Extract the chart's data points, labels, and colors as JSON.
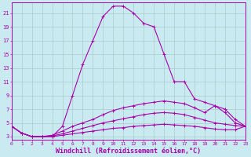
{
  "background_color": "#c8eaf0",
  "grid_color": "#b0d8e0",
  "line_color": "#aa00aa",
  "xlabel": "Windchill (Refroidissement éolien,°C)",
  "xlabel_fontsize": 6,
  "xticks": [
    0,
    1,
    2,
    3,
    4,
    5,
    6,
    7,
    8,
    9,
    10,
    11,
    12,
    13,
    14,
    15,
    16,
    17,
    18,
    19,
    20,
    21,
    22,
    23
  ],
  "yticks": [
    3,
    5,
    7,
    9,
    11,
    13,
    15,
    17,
    19,
    21
  ],
  "xlim": [
    0,
    23
  ],
  "ylim": [
    2.5,
    22.5
  ],
  "curves": [
    {
      "x": [
        0,
        1,
        2,
        3,
        4,
        5,
        6,
        7,
        8,
        9,
        10,
        11,
        12,
        13,
        14,
        15,
        16,
        17,
        18,
        19,
        20,
        21,
        22,
        23
      ],
      "y": [
        4.5,
        3.5,
        3.0,
        3.0,
        3.0,
        4.5,
        9.0,
        13.5,
        17.0,
        20.5,
        22.0,
        22.0,
        21.0,
        19.5,
        19.0,
        15.0,
        11.0,
        11.0,
        8.5,
        8.0,
        7.5,
        6.5,
        5.0,
        4.5
      ]
    },
    {
      "x": [
        0,
        1,
        2,
        3,
        4,
        5,
        6,
        7,
        8,
        9,
        10,
        11,
        12,
        13,
        14,
        15,
        16,
        17,
        18,
        19,
        20,
        21,
        22,
        23
      ],
      "y": [
        4.5,
        3.5,
        3.0,
        3.0,
        3.2,
        3.8,
        4.5,
        5.0,
        5.5,
        6.2,
        6.8,
        7.2,
        7.5,
        7.8,
        8.0,
        8.2,
        8.0,
        7.8,
        7.2,
        6.5,
        7.5,
        7.0,
        5.5,
        4.5
      ]
    },
    {
      "x": [
        0,
        1,
        2,
        3,
        4,
        5,
        6,
        7,
        8,
        9,
        10,
        11,
        12,
        13,
        14,
        15,
        16,
        17,
        18,
        19,
        20,
        21,
        22,
        23
      ],
      "y": [
        4.5,
        3.5,
        3.0,
        3.0,
        3.1,
        3.4,
        3.8,
        4.2,
        4.6,
        5.0,
        5.3,
        5.6,
        5.9,
        6.2,
        6.4,
        6.5,
        6.4,
        6.2,
        5.8,
        5.4,
        5.0,
        4.8,
        4.6,
        4.5
      ]
    },
    {
      "x": [
        0,
        1,
        2,
        3,
        4,
        5,
        6,
        7,
        8,
        9,
        10,
        11,
        12,
        13,
        14,
        15,
        16,
        17,
        18,
        19,
        20,
        21,
        22,
        23
      ],
      "y": [
        4.5,
        3.5,
        3.0,
        3.0,
        3.0,
        3.2,
        3.4,
        3.6,
        3.8,
        4.0,
        4.2,
        4.3,
        4.5,
        4.6,
        4.7,
        4.8,
        4.7,
        4.6,
        4.5,
        4.3,
        4.1,
        4.0,
        4.0,
        4.5
      ]
    }
  ]
}
